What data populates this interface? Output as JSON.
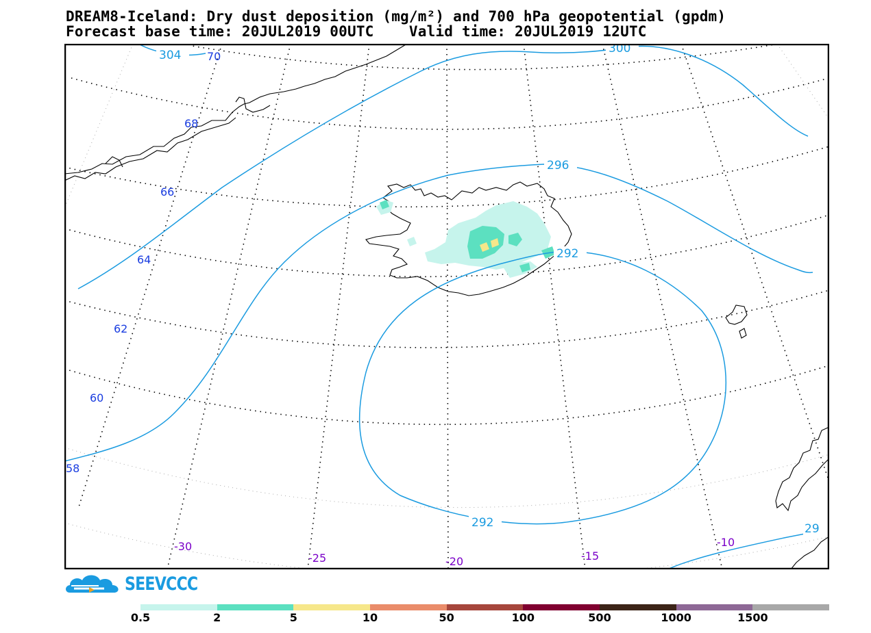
{
  "title": {
    "line1": "DREAM8-Iceland: Dry dust deposition (mg/m²) and 700 hPa geopotential (gpdm)",
    "line2": "Forecast base time: 20JUL2019 00UTC    Valid time: 20JUL2019 12UTC"
  },
  "logo": {
    "text": "SEEVCCC",
    "icon": "cloud-logo-icon"
  },
  "geopotential_labels": [
    "304",
    "300",
    "296",
    "292",
    "292",
    "29"
  ],
  "latitude_labels": [
    "70",
    "68",
    "66",
    "64",
    "62",
    "60",
    "58"
  ],
  "longitude_labels": [
    "-30",
    "-25",
    "-20",
    "-15",
    "-10"
  ],
  "colors": {
    "contour": "#1a9be0",
    "coast": "#000000",
    "latitude_label": "#1a3de0",
    "longitude_label": "#7a00c8"
  },
  "legend": {
    "thresholds": [
      "0.5",
      "2",
      "5",
      "10",
      "50",
      "100",
      "500",
      "1000",
      "1500"
    ],
    "colors": [
      "#c6f4ec",
      "#5ce0c0",
      "#f6e78a",
      "#ea8c6a",
      "#a6463c",
      "#800030",
      "#3c2418",
      "#8e6896",
      "#a8a8a8"
    ]
  }
}
